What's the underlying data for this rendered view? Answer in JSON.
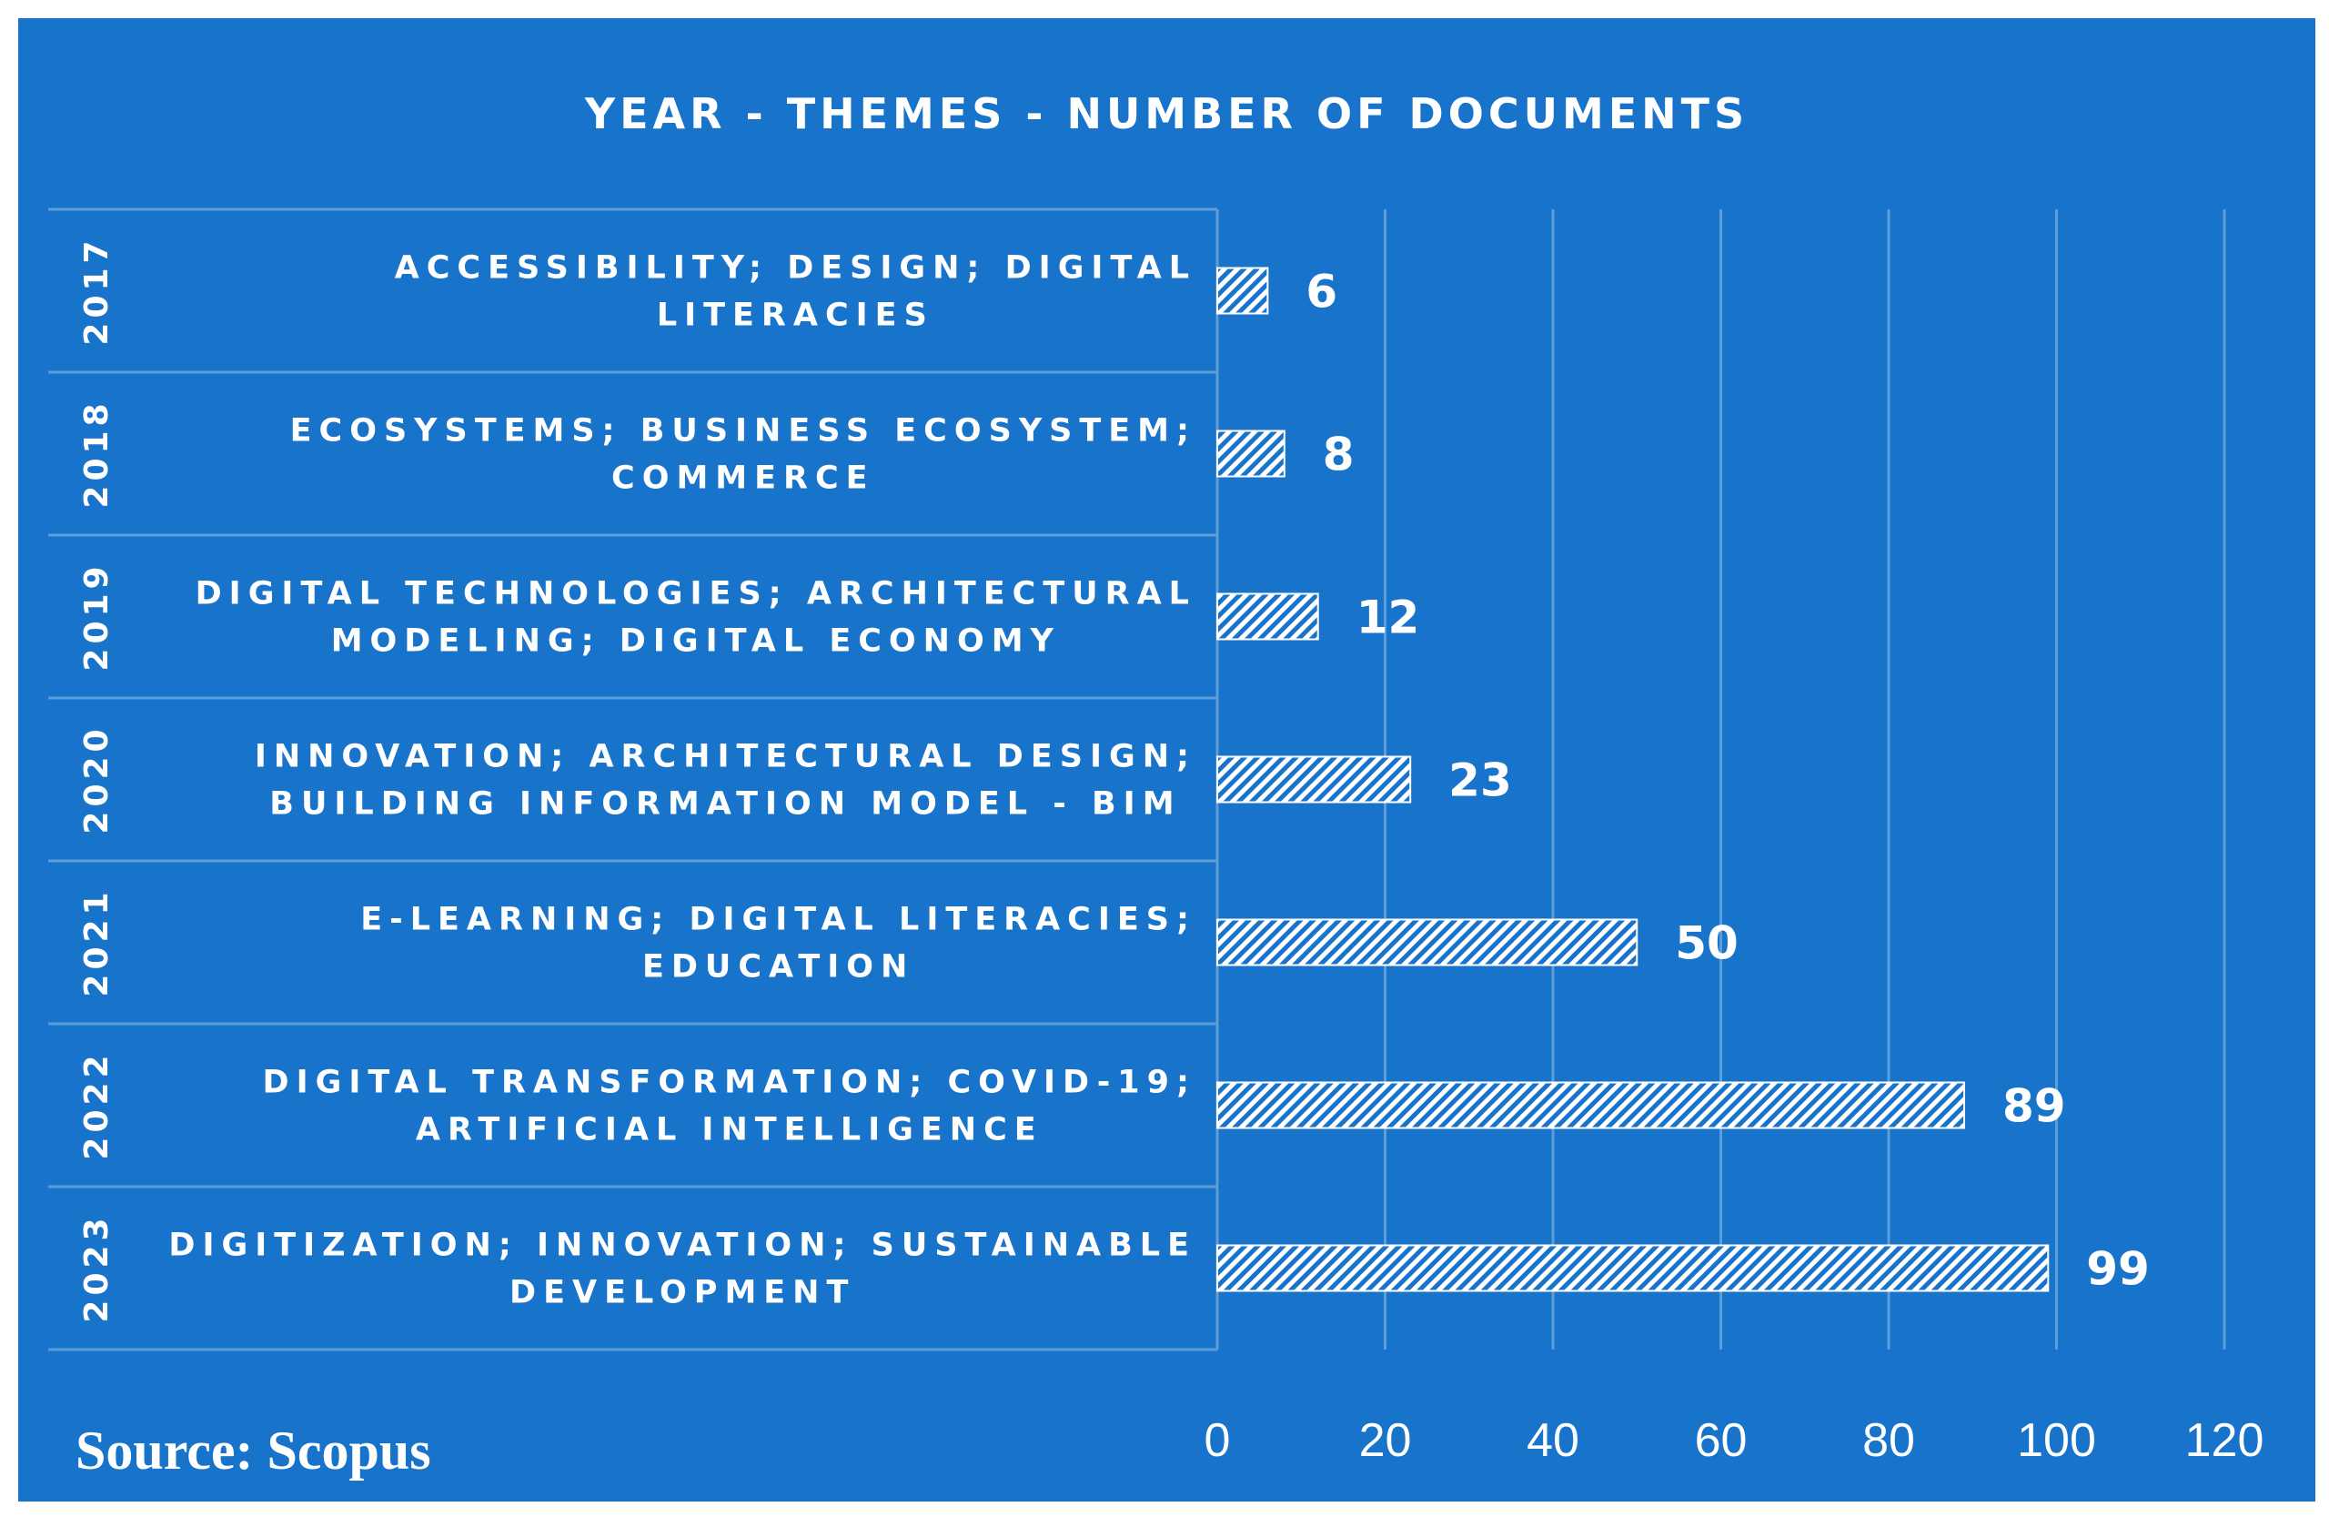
{
  "chart_data": {
    "type": "bar",
    "orientation": "horizontal",
    "title": "YEAR - THEMES - NUMBER OF DOCUMENTS",
    "source": "Source: Scopus",
    "categories": [
      {
        "year": "2017",
        "theme_lines": [
          "ACCESSIBILITY; DESIGN; DIGITAL",
          "LITERACIES"
        ]
      },
      {
        "year": "2018",
        "theme_lines": [
          "ECOSYSTEMS; BUSINESS ECOSYSTEM;",
          "COMMERCE"
        ]
      },
      {
        "year": "2019",
        "theme_lines": [
          "DIGITAL TECHNOLOGIES; ARCHITECTURAL",
          "MODELING; DIGITAL ECONOMY"
        ]
      },
      {
        "year": "2020",
        "theme_lines": [
          "INNOVATION; ARCHITECTURAL DESIGN;",
          "BUILDING INFORMATION MODEL - BIM"
        ]
      },
      {
        "year": "2021",
        "theme_lines": [
          "E-LEARNING; DIGITAL LITERACIES;",
          "EDUCATION"
        ]
      },
      {
        "year": "2022",
        "theme_lines": [
          "DIGITAL TRANSFORMATION; COVID-19;",
          "ARTIFICIAL INTELLIGENCE"
        ]
      },
      {
        "year": "2023",
        "theme_lines": [
          "DIGITIZATION; INNOVATION; SUSTAINABLE",
          "DEVELOPMENT"
        ]
      }
    ],
    "values": [
      6,
      8,
      12,
      23,
      50,
      89,
      99
    ],
    "xlim": [
      0,
      120
    ],
    "xticks": [
      0,
      20,
      40,
      60,
      80,
      100,
      120
    ],
    "grid": true,
    "colors": {
      "background": "#1873CA",
      "bar_stripe": "#ffffff",
      "text": "#ffffff",
      "line": "#5E9DDB"
    }
  }
}
